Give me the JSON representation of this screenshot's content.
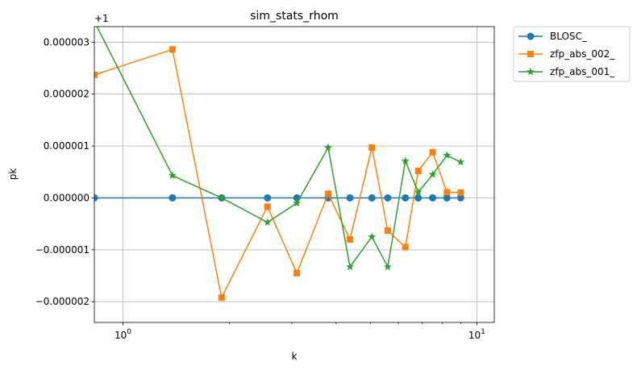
{
  "chart_data": {
    "type": "line",
    "title": "sim_stats_rhom",
    "xlabel": "k",
    "ylabel": "pk",
    "xscale": "log",
    "xlim": [
      0.83,
      11.2
    ],
    "ylim": [
      -2.4e-06,
      3.3e-06
    ],
    "offset_text": "+1",
    "grid": true,
    "legend_position": "outside top-right",
    "x_tick_labels": [
      {
        "value": 1,
        "base": "10",
        "exp": "0"
      },
      {
        "value": 10,
        "base": "10",
        "exp": "1"
      }
    ],
    "y_ticks": [
      -2e-06,
      -1e-06,
      0,
      1e-06,
      2e-06,
      3e-06
    ],
    "y_tick_labels": [
      "−0.000002",
      "−0.000001",
      "0.000000",
      "0.000001",
      "0.000002",
      "0.000003"
    ],
    "x": [
      0.83,
      1.38,
      1.9,
      2.56,
      3.1,
      3.8,
      4.38,
      5.05,
      5.6,
      6.28,
      6.83,
      7.5,
      8.23,
      9.0
    ],
    "series": [
      {
        "name": "BLOSC_",
        "color": "#1f77b4",
        "marker": "circle",
        "values": [
          0,
          0,
          0,
          0,
          0,
          0,
          0,
          0,
          0,
          0,
          0,
          0,
          0,
          0
        ]
      },
      {
        "name": "zfp_abs_002_",
        "color": "#ff7f0e",
        "marker": "square",
        "values": [
          2.37e-06,
          2.86e-06,
          -1.92e-06,
          -1.7e-07,
          -1.45e-06,
          8e-08,
          -8e-07,
          9.7e-07,
          -6.3e-07,
          -9.5e-07,
          5.2e-07,
          8.8e-07,
          1.1e-07,
          1e-07
        ]
      },
      {
        "name": "zfp_abs_001_",
        "color": "#2ca02c",
        "marker": "star",
        "values": [
          3.4e-06,
          4.3e-07,
          0,
          -4.7e-07,
          -1e-07,
          9.7e-07,
          -1.33e-06,
          -7.5e-07,
          -1.33e-06,
          7.1e-07,
          1.1e-07,
          4.5e-07,
          8.2e-07,
          6.9e-07
        ]
      }
    ]
  }
}
